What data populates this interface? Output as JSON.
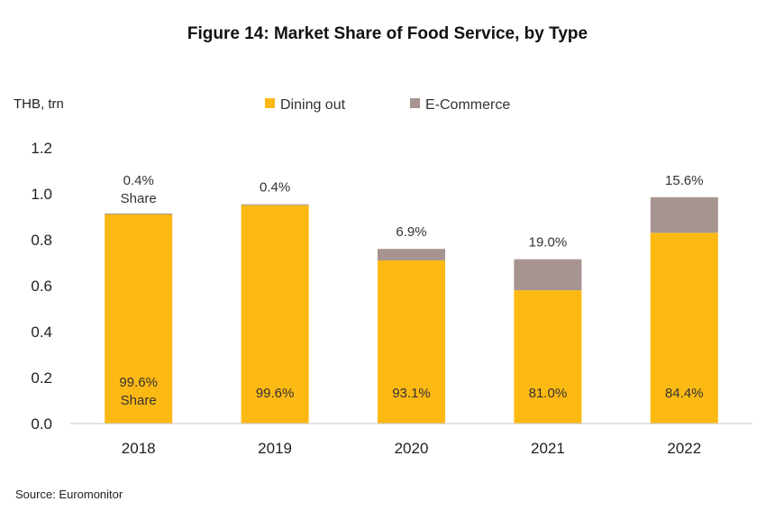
{
  "chart_data": {
    "type": "bar",
    "stacked": true,
    "title": "Figure 14: Market Share of Food Service, by Type",
    "ylabel": "THB, trn",
    "source": "Source: Euromonitor",
    "ylim": [
      0,
      1.2
    ],
    "yticks": [
      "0.0",
      "0.2",
      "0.4",
      "0.6",
      "0.8",
      "1.0",
      "1.2"
    ],
    "grid": false,
    "legend_position": "top",
    "categories": [
      "2018",
      "2019",
      "2020",
      "2021",
      "2022"
    ],
    "series": [
      {
        "name": "Dining out",
        "color": "#FDB913",
        "values": [
          0.91,
          0.95,
          0.71,
          0.58,
          0.83
        ],
        "labels": [
          "99.6%",
          "99.6%",
          "93.1%",
          "81.0%",
          "84.4%"
        ]
      },
      {
        "name": "E-Commerce",
        "color": "#A79490",
        "values": [
          0.004,
          0.004,
          0.05,
          0.135,
          0.155
        ],
        "labels": [
          "0.4%",
          "0.4%",
          "6.9%",
          "19.0%",
          "15.6%"
        ]
      }
    ],
    "annotations": {
      "share_word": "Share"
    }
  }
}
